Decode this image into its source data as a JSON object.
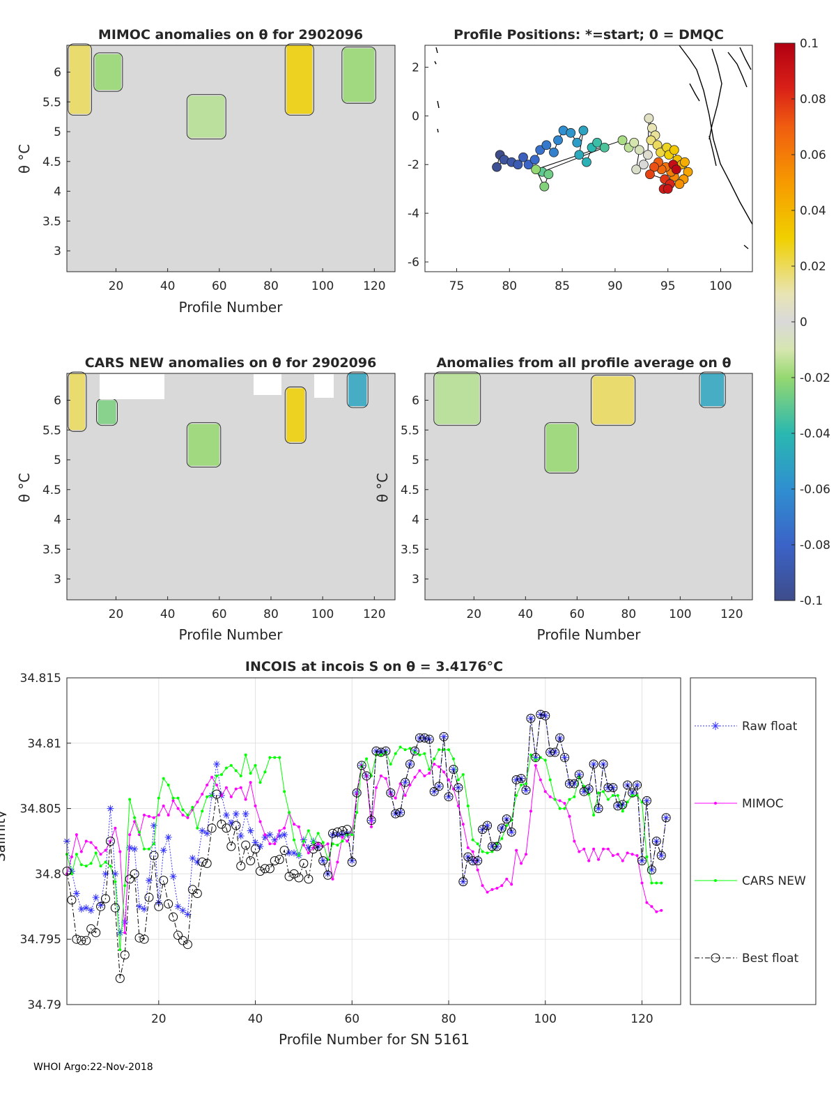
{
  "footer": "WHOI Argo:22-Nov-2018",
  "chart_data": [
    {
      "type": "heatmap",
      "title": "MIMOC anomalies on θ  for 2902096",
      "xlabel": "Profile Number",
      "ylabel": "θ °C",
      "xlim": [
        1,
        128
      ],
      "ylim": [
        2.65,
        6.45
      ],
      "xticks": [
        "20",
        "40",
        "60",
        "80",
        "100",
        "120"
      ],
      "yticks": [
        "3",
        "3.5",
        "4",
        "4.5",
        "5",
        "5.5",
        "6"
      ],
      "features": [
        {
          "x": [
            2,
            10
          ],
          "y": [
            5.3,
            6.45
          ],
          "anomaly": 0.02
        },
        {
          "x": [
            12,
            22
          ],
          "y": [
            5.7,
            6.3
          ],
          "anomaly": -0.02
        },
        {
          "x": [
            48,
            62
          ],
          "y": [
            4.9,
            5.6
          ],
          "anomaly": -0.015
        },
        {
          "x": [
            86,
            96
          ],
          "y": [
            5.3,
            6.45
          ],
          "anomaly": 0.03
        },
        {
          "x": [
            108,
            120
          ],
          "y": [
            5.5,
            6.4
          ],
          "anomaly": -0.02
        }
      ]
    },
    {
      "type": "scatter",
      "title": "Profile Positions: *=start; 0 = DMQC",
      "xlim": [
        72,
        103
      ],
      "ylim": [
        -6.4,
        2.9
      ],
      "xticks": [
        "75",
        "80",
        "85",
        "90",
        "95",
        "100"
      ],
      "yticks": [
        "2",
        "0",
        "-2",
        "-4",
        "-6"
      ],
      "positions": [
        [
          79.1,
          -1.6
        ],
        [
          78.8,
          -2.1
        ],
        [
          79.5,
          -1.8
        ],
        [
          80.2,
          -1.9
        ],
        [
          80.8,
          -2.0
        ],
        [
          81.3,
          -1.7
        ],
        [
          81.8,
          -2.0
        ],
        [
          82.4,
          -1.8
        ],
        [
          82.9,
          -1.4
        ],
        [
          83.5,
          -1.2
        ],
        [
          84.2,
          -1.5
        ],
        [
          84.6,
          -1.0
        ],
        [
          85.1,
          -0.6
        ],
        [
          85.8,
          -0.7
        ],
        [
          86.4,
          -1.1
        ],
        [
          87.0,
          -0.6
        ],
        [
          86.6,
          -1.6
        ],
        [
          87.3,
          -1.9
        ],
        [
          87.8,
          -1.3
        ],
        [
          88.3,
          -1.1
        ],
        [
          89.0,
          -1.3
        ],
        [
          83.1,
          -2.3
        ],
        [
          83.7,
          -2.4
        ],
        [
          83.3,
          -2.9
        ],
        [
          82.5,
          -2.2
        ],
        [
          90.7,
          -1.0
        ],
        [
          91.3,
          -1.3
        ],
        [
          91.8,
          -1.1
        ],
        [
          92.3,
          -1.4
        ],
        [
          92.0,
          -2.2
        ],
        [
          92.7,
          -2.0
        ],
        [
          93.1,
          -1.6
        ],
        [
          93.2,
          -0.1
        ],
        [
          93.5,
          -0.5
        ],
        [
          93.8,
          -0.8
        ],
        [
          93.4,
          -1.0
        ],
        [
          94.0,
          -1.2
        ],
        [
          94.3,
          -1.5
        ],
        [
          94.9,
          -1.3
        ],
        [
          95.1,
          -1.6
        ],
        [
          95.6,
          -1.4
        ],
        [
          95.9,
          -1.8
        ],
        [
          96.3,
          -2.0
        ],
        [
          96.6,
          -1.9
        ],
        [
          96.9,
          -2.3
        ],
        [
          96.5,
          -2.6
        ],
        [
          96.1,
          -2.8
        ],
        [
          95.6,
          -2.5
        ],
        [
          95.3,
          -2.3
        ],
        [
          94.8,
          -2.1
        ],
        [
          94.4,
          -2.2
        ],
        [
          94.1,
          -1.9
        ],
        [
          93.7,
          -2.1
        ],
        [
          93.3,
          -2.4
        ],
        [
          94.7,
          -2.6
        ],
        [
          95.2,
          -2.8
        ],
        [
          94.6,
          -3.0
        ],
        [
          95.0,
          -3.0
        ],
        [
          95.5,
          -2.0
        ],
        [
          95.8,
          -2.2
        ]
      ],
      "colorbar": {
        "range": [
          -0.1,
          0.1
        ],
        "ticks": [
          "0.1",
          "0.08",
          "0.06",
          "0.04",
          "0.02",
          "0",
          "-0.02",
          "-0.04",
          "-0.06",
          "-0.08",
          "-0.1"
        ]
      }
    },
    {
      "type": "heatmap",
      "title": "CARS NEW anomalies on θ for 2902096",
      "xlabel": "Profile Number",
      "ylabel": "θ °C",
      "xlim": [
        1,
        128
      ],
      "ylim": [
        2.65,
        6.45
      ],
      "xticks": [
        "20",
        "40",
        "60",
        "80",
        "100",
        "120"
      ],
      "yticks": [
        "3",
        "3.5",
        "4",
        "4.5",
        "5",
        "5.5",
        "6"
      ],
      "features": [
        {
          "x": [
            2,
            8
          ],
          "y": [
            5.5,
            6.45
          ],
          "anomaly": 0.02
        },
        {
          "x": [
            13,
            20
          ],
          "y": [
            5.6,
            6.0
          ],
          "anomaly": -0.025
        },
        {
          "x": [
            48,
            60
          ],
          "y": [
            4.9,
            5.6
          ],
          "anomaly": -0.02
        },
        {
          "x": [
            86,
            93
          ],
          "y": [
            5.3,
            6.2
          ],
          "anomaly": 0.03
        },
        {
          "x": [
            110,
            117
          ],
          "y": [
            5.9,
            6.45
          ],
          "anomaly": -0.05
        }
      ]
    },
    {
      "type": "heatmap",
      "title": "Anomalies from all profile average on θ",
      "xlabel": "Profile Number",
      "ylabel": "θ °C",
      "xlim": [
        1,
        128
      ],
      "ylim": [
        2.65,
        6.45
      ],
      "xticks": [
        "20",
        "40",
        "60",
        "80",
        "100",
        "120"
      ],
      "yticks": [
        "3",
        "3.5",
        "4",
        "4.5",
        "5",
        "5.5",
        "6"
      ],
      "features": [
        {
          "x": [
            5,
            22
          ],
          "y": [
            5.6,
            6.45
          ],
          "anomaly": -0.015
        },
        {
          "x": [
            48,
            60
          ],
          "y": [
            4.8,
            5.6
          ],
          "anomaly": -0.02
        },
        {
          "x": [
            66,
            82
          ],
          "y": [
            5.6,
            6.4
          ],
          "anomaly": 0.02
        },
        {
          "x": [
            108,
            117
          ],
          "y": [
            5.9,
            6.45
          ],
          "anomaly": -0.05
        }
      ]
    },
    {
      "type": "line",
      "title": "INCOIS at incois S on θ = 3.4176°C",
      "xlabel": "Profile Number for SN 5161",
      "ylabel": "Salinity",
      "xlim": [
        1,
        128
      ],
      "ylim": [
        34.79,
        34.815
      ],
      "xticks": [
        "20",
        "40",
        "60",
        "80",
        "100",
        "120"
      ],
      "yticks": [
        "34.815",
        "34.81",
        "34.805",
        "34.8",
        "34.795",
        "34.79"
      ],
      "legend_position": "right",
      "series": [
        {
          "name": "Raw float",
          "color": "#3333ff",
          "values": [
            34.8025,
            34.8002,
            34.7985,
            34.7973,
            34.7974,
            34.7972,
            34.7982,
            34.7976,
            34.8,
            34.805,
            34.8,
            34.7955,
            34.7963,
            34.802,
            34.8019,
            34.7975,
            34.7973,
            34.7995,
            34.8037,
            34.7978,
            34.8018,
            34.8028,
            34.7998,
            34.7975,
            34.7972,
            34.7969,
            34.8012,
            34.8009,
            34.8033,
            34.8031,
            34.806,
            34.8084,
            34.806,
            34.8045,
            34.8039,
            34.8046,
            34.8029,
            34.8046,
            34.8033,
            34.8024,
            34.8021,
            34.8028,
            34.803,
            34.8026,
            34.8029,
            34.803,
            34.8016,
            34.8016,
            34.8014,
            34.8026,
            34.802,
            34.8025,
            34.8021,
            34.801,
            34.8,
            34.803,
            34.803,
            34.803,
            34.8031,
            34.801,
            34.8062,
            34.8083,
            34.8075,
            34.8041,
            34.8094,
            34.8093,
            34.8094,
            34.8062,
            34.8046,
            34.8047,
            34.807,
            34.8084,
            34.8094,
            34.8104,
            34.8104,
            34.8103,
            34.8063,
            34.8067,
            34.8105,
            34.8059,
            34.808,
            34.8066,
            34.7994,
            34.8013,
            34.801,
            34.801,
            34.8034,
            34.8037,
            34.8021,
            34.8021,
            34.8035,
            34.8042,
            34.8032,
            34.8072,
            34.8073,
            34.8064,
            34.8119,
            34.8089,
            34.8122,
            34.8121,
            34.8093,
            34.8093,
            34.8104,
            34.8089,
            34.8069,
            34.8069,
            34.8076,
            34.8063,
            34.8065,
            34.8084,
            34.805,
            34.8084,
            34.8066,
            34.8066,
            34.8052,
            34.8053,
            34.8068,
            34.8062,
            34.8068,
            34.801,
            34.8056,
            34.8003,
            34.8025,
            34.8014,
            34.8043
          ]
        },
        {
          "name": "MIMOC",
          "color": "#ff00ff",
          "values": [
            34.8,
            34.8013,
            34.803,
            34.8017,
            34.8025,
            34.8024,
            34.802,
            34.8015,
            34.8018,
            34.8025,
            34.8035,
            34.8017,
            34.7955,
            34.803,
            34.804,
            34.803,
            34.8045,
            34.8044,
            34.8043,
            34.8045,
            34.8052,
            34.8045,
            34.8056,
            34.805,
            34.8045,
            34.8043,
            34.8049,
            34.8055,
            34.8061,
            34.8068,
            34.8074,
            34.8068,
            34.806,
            34.8066,
            34.8059,
            34.8065,
            34.8066,
            34.8057,
            34.807,
            34.8052,
            34.804,
            34.803,
            34.8023,
            34.8023,
            34.8033,
            34.8035,
            34.8047,
            34.8038,
            34.8036,
            34.8022,
            34.8016,
            34.802,
            34.8023,
            34.8021,
            34.8023,
            34.7996,
            34.8009,
            34.8028,
            34.8025,
            34.8031,
            34.8061,
            34.8083,
            34.8075,
            34.8036,
            34.8066,
            34.8075,
            34.8073,
            34.8061,
            34.8058,
            34.8069,
            34.806,
            34.8068,
            34.8074,
            34.8079,
            34.8075,
            34.8077,
            34.8084,
            34.8082,
            34.8078,
            34.8072,
            34.8065,
            34.8052,
            34.8038,
            34.802,
            34.8017,
            34.8003,
            34.7991,
            34.7986,
            34.7988,
            34.7989,
            34.7991,
            34.7996,
            34.7992,
            34.8018,
            34.8008,
            34.8015,
            34.8048,
            34.8083,
            34.8072,
            34.8063,
            34.8059,
            34.8057,
            34.8056,
            34.8054,
            34.8044,
            34.8025,
            34.8017,
            34.8019,
            34.801,
            34.8019,
            34.8011,
            34.8019,
            34.8019,
            34.8014,
            34.8015,
            34.801,
            34.8016,
            34.8015,
            34.8014,
            34.7993,
            34.7978,
            34.7975,
            34.7971,
            34.7972
          ]
        },
        {
          "name": "CARS NEW",
          "color": "#00ff00",
          "values": [
            34.8015,
            34.8,
            34.8015,
            34.8007,
            34.8006,
            34.8008,
            34.8016,
            34.8006,
            34.8009,
            34.8006,
            34.7994,
            34.7942,
            34.7991,
            34.8057,
            34.8043,
            34.8032,
            34.8019,
            34.8019,
            34.8023,
            34.8058,
            34.8073,
            34.8068,
            34.8058,
            34.8058,
            34.8049,
            34.8045,
            34.8051,
            34.8035,
            34.8048,
            34.8059,
            34.806,
            34.8075,
            34.8076,
            34.8081,
            34.8083,
            34.8079,
            34.8075,
            34.8091,
            34.8077,
            34.8083,
            34.807,
            34.8078,
            34.8089,
            34.8089,
            34.8089,
            34.8063,
            34.8047,
            34.8026,
            34.8014,
            34.8025,
            34.8033,
            34.8024,
            34.8031,
            34.8024,
            34.8011,
            34.8023,
            34.8022,
            34.8025,
            34.803,
            34.803,
            34.8047,
            34.8082,
            34.8088,
            34.8075,
            34.8091,
            34.8091,
            34.8093,
            34.8084,
            34.8092,
            34.8097,
            34.8095,
            34.8096,
            34.8093,
            34.8091,
            34.8092,
            34.808,
            34.8088,
            34.8095,
            34.8095,
            34.8095,
            34.8088,
            34.8072,
            34.8076,
            34.8052,
            34.8026,
            34.8023,
            34.8017,
            34.8016,
            34.8017,
            34.8023,
            34.8027,
            34.8037,
            34.8041,
            34.806,
            34.8068,
            34.8069,
            34.8091,
            34.8087,
            34.8089,
            34.8087,
            34.8072,
            34.8057,
            34.805,
            34.805,
            34.8057,
            34.8059,
            34.8074,
            34.8067,
            34.8061,
            34.8045,
            34.8062,
            34.8063,
            34.8057,
            34.806,
            34.806,
            34.8048,
            34.8055,
            34.806,
            34.806,
            34.8055,
            34.8013,
            34.7993,
            34.7993,
            34.7993
          ]
        },
        {
          "name": "Best float",
          "color": "#000000",
          "values": [
            34.8002,
            34.798,
            34.795,
            34.7949,
            34.7949,
            34.7958,
            34.7955,
            34.7975,
            34.7981,
            34.8025,
            34.7974,
            34.792,
            34.7938,
            34.7996,
            34.8,
            34.7951,
            34.795,
            34.7982,
            34.8014,
            34.7975,
            34.7995,
            34.7977,
            34.7967,
            34.7953,
            34.7949,
            34.7946,
            34.7988,
            34.7985,
            34.8009,
            34.8008,
            34.8035,
            34.8061,
            34.8038,
            34.8035,
            34.8021,
            34.8037,
            34.8006,
            34.8022,
            34.801,
            34.8019,
            34.8002,
            34.8004,
            34.8004,
            34.801,
            34.8011,
            34.8018,
            34.7998,
            34.8,
            34.7997,
            34.8008,
            34.7996,
            34.8019,
            34.8021,
            34.801,
            34.7999,
            34.8031,
            34.8032,
            34.8033,
            34.8034,
            34.8009,
            34.8062,
            34.8083,
            34.8075,
            34.8041,
            34.8094,
            34.8093,
            34.8094,
            34.8062,
            34.8046,
            34.8047,
            34.807,
            34.8084,
            34.8094,
            34.8104,
            34.8104,
            34.8103,
            34.8063,
            34.8067,
            34.8105,
            34.8059,
            34.808,
            34.8066,
            34.7994,
            34.8013,
            34.801,
            34.801,
            34.8034,
            34.8037,
            34.8021,
            34.8021,
            34.8035,
            34.8042,
            34.8032,
            34.8072,
            34.8073,
            34.8064,
            34.8119,
            34.8089,
            34.8122,
            34.8121,
            34.8093,
            34.8093,
            34.8104,
            34.8089,
            34.8069,
            34.8069,
            34.8076,
            34.8063,
            34.8065,
            34.8084,
            34.805,
            34.8084,
            34.8066,
            34.8066,
            34.8052,
            34.8053,
            34.8068,
            34.8062,
            34.8068,
            34.801,
            34.8056,
            34.8003,
            34.8025,
            34.8014,
            34.8043
          ]
        }
      ]
    }
  ]
}
